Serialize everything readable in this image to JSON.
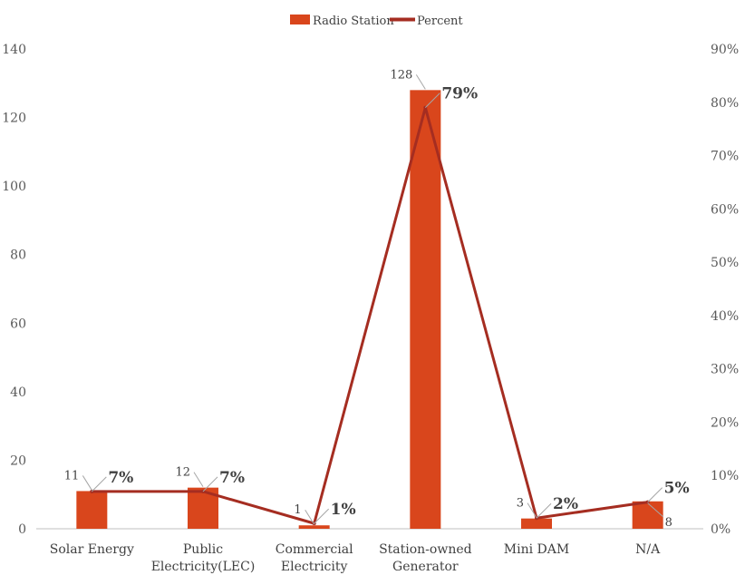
{
  "colors": {
    "bar": "#D9461C",
    "line": "#A52D21",
    "axis": "#BFBFBF",
    "leader": "#A6A6A6"
  },
  "legend": {
    "position": "top",
    "bar_label": "Radio Station",
    "line_label": "Percent"
  },
  "chart_data": {
    "type": "bar",
    "categories": [
      [
        "Solar Energy"
      ],
      [
        "Public",
        "Electricity(LEC)"
      ],
      [
        "Commercial",
        "Electricity"
      ],
      [
        "Station-owned",
        "Generator"
      ],
      [
        "Mini DAM"
      ],
      [
        "N/A"
      ]
    ],
    "series": [
      {
        "name": "Radio Station",
        "type": "bar",
        "axis": "left",
        "values": [
          11,
          12,
          1,
          128,
          3,
          8
        ],
        "labels": [
          "11",
          "12",
          "1",
          "128",
          "3",
          "8"
        ]
      },
      {
        "name": "Percent",
        "type": "line",
        "axis": "right",
        "values": [
          7,
          7,
          1,
          79,
          2,
          5
        ],
        "labels": [
          "7%",
          "7%",
          "1%",
          "79%",
          "2%",
          "5%"
        ]
      }
    ],
    "left_axis": {
      "min": 0,
      "max": 140,
      "step": 20,
      "ticks": [
        "0",
        "20",
        "40",
        "60",
        "80",
        "100",
        "120",
        "140"
      ]
    },
    "right_axis": {
      "min": 0,
      "max": 90,
      "step": 10,
      "ticks": [
        "0%",
        "10%",
        "20%",
        "30%",
        "40%",
        "50%",
        "60%",
        "70%",
        "80%",
        "90%"
      ]
    },
    "grid": false
  }
}
